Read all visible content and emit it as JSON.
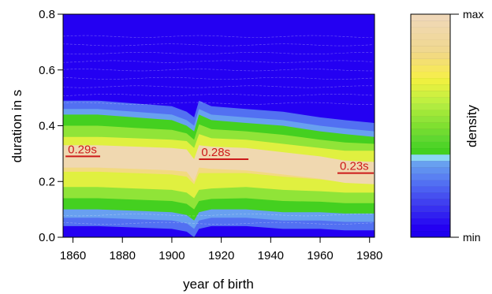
{
  "chart_data": {
    "type": "heatmap",
    "title": "",
    "xlabel": "year of birth",
    "ylabel": "duration in s",
    "xlim": [
      1856,
      1982
    ],
    "ylim": [
      0.0,
      0.8
    ],
    "x_ticks": [
      1860,
      1880,
      1900,
      1920,
      1940,
      1960,
      1980
    ],
    "x_tick_labels": [
      "1860",
      "1880",
      "1900",
      "1920",
      "1940",
      "1960",
      "1980"
    ],
    "y_ticks": [
      0.0,
      0.2,
      0.4,
      0.6,
      0.8
    ],
    "y_tick_labels": [
      "0.0",
      "0.2",
      "0.4",
      "0.6",
      "0.8"
    ],
    "band": {
      "x": [
        1856,
        1870,
        1885,
        1900,
        1906,
        1909,
        1911,
        1916,
        1930,
        1945,
        1960,
        1970,
        1982
      ],
      "mode": [
        0.29,
        0.29,
        0.285,
        0.28,
        0.275,
        0.24,
        0.29,
        0.285,
        0.28,
        0.265,
        0.25,
        0.235,
        0.23
      ],
      "inner_low": [
        0.18,
        0.18,
        0.175,
        0.17,
        0.16,
        0.14,
        0.17,
        0.175,
        0.18,
        0.17,
        0.165,
        0.16,
        0.16
      ],
      "inner_high": [
        0.36,
        0.36,
        0.355,
        0.35,
        0.345,
        0.32,
        0.37,
        0.355,
        0.35,
        0.335,
        0.32,
        0.31,
        0.31
      ],
      "outer_low": [
        0.1,
        0.1,
        0.095,
        0.09,
        0.08,
        0.06,
        0.09,
        0.1,
        0.1,
        0.09,
        0.09,
        0.085,
        0.085
      ],
      "outer_high": [
        0.44,
        0.44,
        0.43,
        0.42,
        0.4,
        0.38,
        0.44,
        0.42,
        0.41,
        0.4,
        0.38,
        0.37,
        0.36
      ]
    },
    "annotations": [
      {
        "text": "0.29s",
        "x_start": 1857,
        "x_end": 1871,
        "y": 0.29
      },
      {
        "text": "0.28s",
        "x_start": 1911,
        "x_end": 1931,
        "y": 0.28
      },
      {
        "text": "0.23s",
        "x_start": 1967,
        "x_end": 1982,
        "y": 0.23
      }
    ],
    "colorbar": {
      "label": "density",
      "max_label": "max",
      "min_label": "min",
      "colors": [
        "#1e00ee",
        "#2400f2",
        "#2a10f2",
        "#3020f0",
        "#3830f0",
        "#4040f0",
        "#4650f0",
        "#4c60f2",
        "#5270f2",
        "#5a80f2",
        "#6090f0",
        "#68a0f0",
        "#8cd8f4",
        "#44d020",
        "#50d428",
        "#60d830",
        "#70dc30",
        "#80e030",
        "#90e438",
        "#a0e838",
        "#b0ec40",
        "#c0f040",
        "#d0f040",
        "#e0f040",
        "#eef040",
        "#f6ec50",
        "#f6e660",
        "#f4e070",
        "#f2da80",
        "#f0d890",
        "#f0d898",
        "#f0d8a0",
        "#f0d8a8",
        "#f0d8b0",
        "#f0d8b8"
      ]
    },
    "grid": false,
    "legend": "right"
  }
}
